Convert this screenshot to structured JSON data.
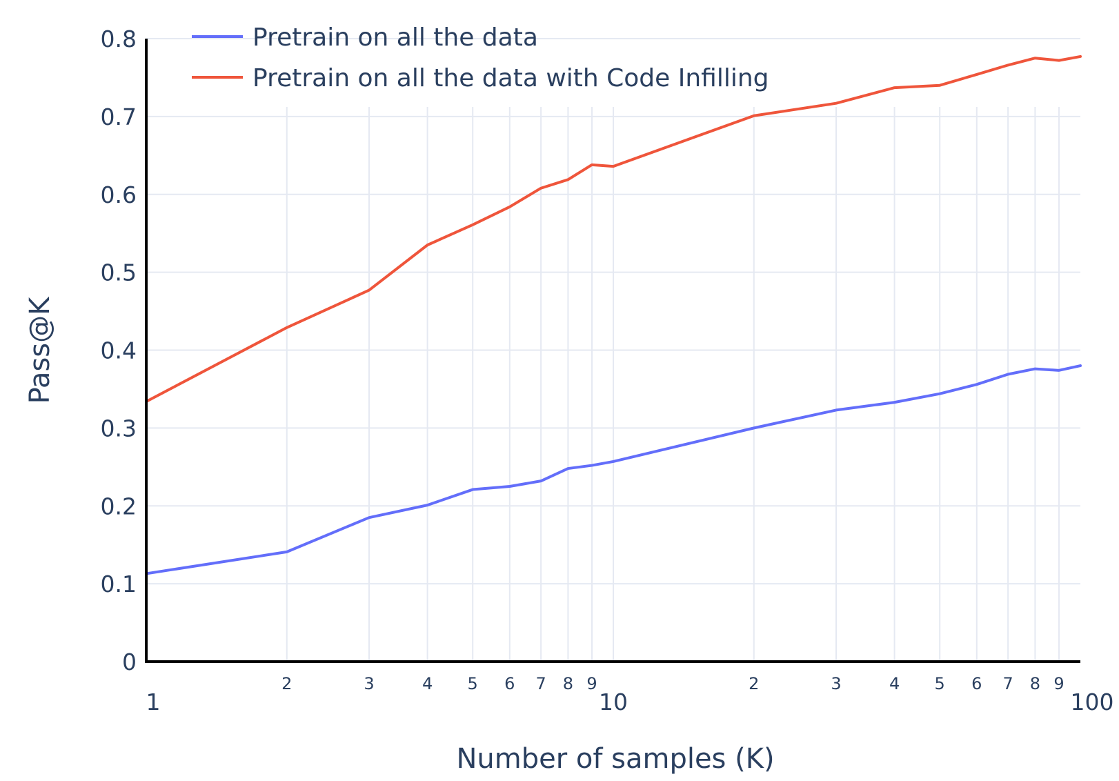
{
  "chart_data": {
    "type": "line",
    "xlabel": "Number of samples (K)",
    "ylabel": "Pass@K",
    "x_scale": "log",
    "xlim": [
      1,
      100
    ],
    "ylim": [
      0,
      0.8
    ],
    "grid": true,
    "legend_position": "top-left",
    "y_ticks": [
      "0",
      "0.1",
      "0.2",
      "0.3",
      "0.4",
      "0.5",
      "0.6",
      "0.7",
      "0.8"
    ],
    "x_major_ticks": [
      {
        "value": 1,
        "label": "1"
      },
      {
        "value": 10,
        "label": "10"
      },
      {
        "value": 100,
        "label": "100"
      }
    ],
    "x_minor_ticks": [
      {
        "value": 2,
        "label": "2"
      },
      {
        "value": 3,
        "label": "3"
      },
      {
        "value": 4,
        "label": "4"
      },
      {
        "value": 5,
        "label": "5"
      },
      {
        "value": 6,
        "label": "6"
      },
      {
        "value": 7,
        "label": "7"
      },
      {
        "value": 8,
        "label": "8"
      },
      {
        "value": 9,
        "label": "9"
      },
      {
        "value": 20,
        "label": "2"
      },
      {
        "value": 30,
        "label": "3"
      },
      {
        "value": 40,
        "label": "4"
      },
      {
        "value": 50,
        "label": "5"
      },
      {
        "value": 60,
        "label": "6"
      },
      {
        "value": 70,
        "label": "7"
      },
      {
        "value": 80,
        "label": "8"
      },
      {
        "value": 90,
        "label": "9"
      }
    ],
    "x": [
      1,
      2,
      3,
      4,
      5,
      6,
      7,
      8,
      9,
      10,
      20,
      30,
      40,
      50,
      60,
      70,
      80,
      90,
      100
    ],
    "series": [
      {
        "name": "Pretrain on all the data",
        "color": "#636efa",
        "values": [
          0.113,
          0.141,
          0.185,
          0.201,
          0.221,
          0.225,
          0.232,
          0.248,
          0.252,
          0.257,
          0.3,
          0.323,
          0.333,
          0.344,
          0.356,
          0.369,
          0.376,
          0.374,
          0.38
        ]
      },
      {
        "name": "Pretrain on all the data with Code Infilling",
        "color": "#ef553b",
        "values": [
          0.334,
          0.429,
          0.477,
          0.535,
          0.561,
          0.584,
          0.608,
          0.619,
          0.638,
          0.636,
          0.701,
          0.717,
          0.737,
          0.74,
          0.754,
          0.766,
          0.775,
          0.772,
          0.777
        ]
      }
    ]
  }
}
